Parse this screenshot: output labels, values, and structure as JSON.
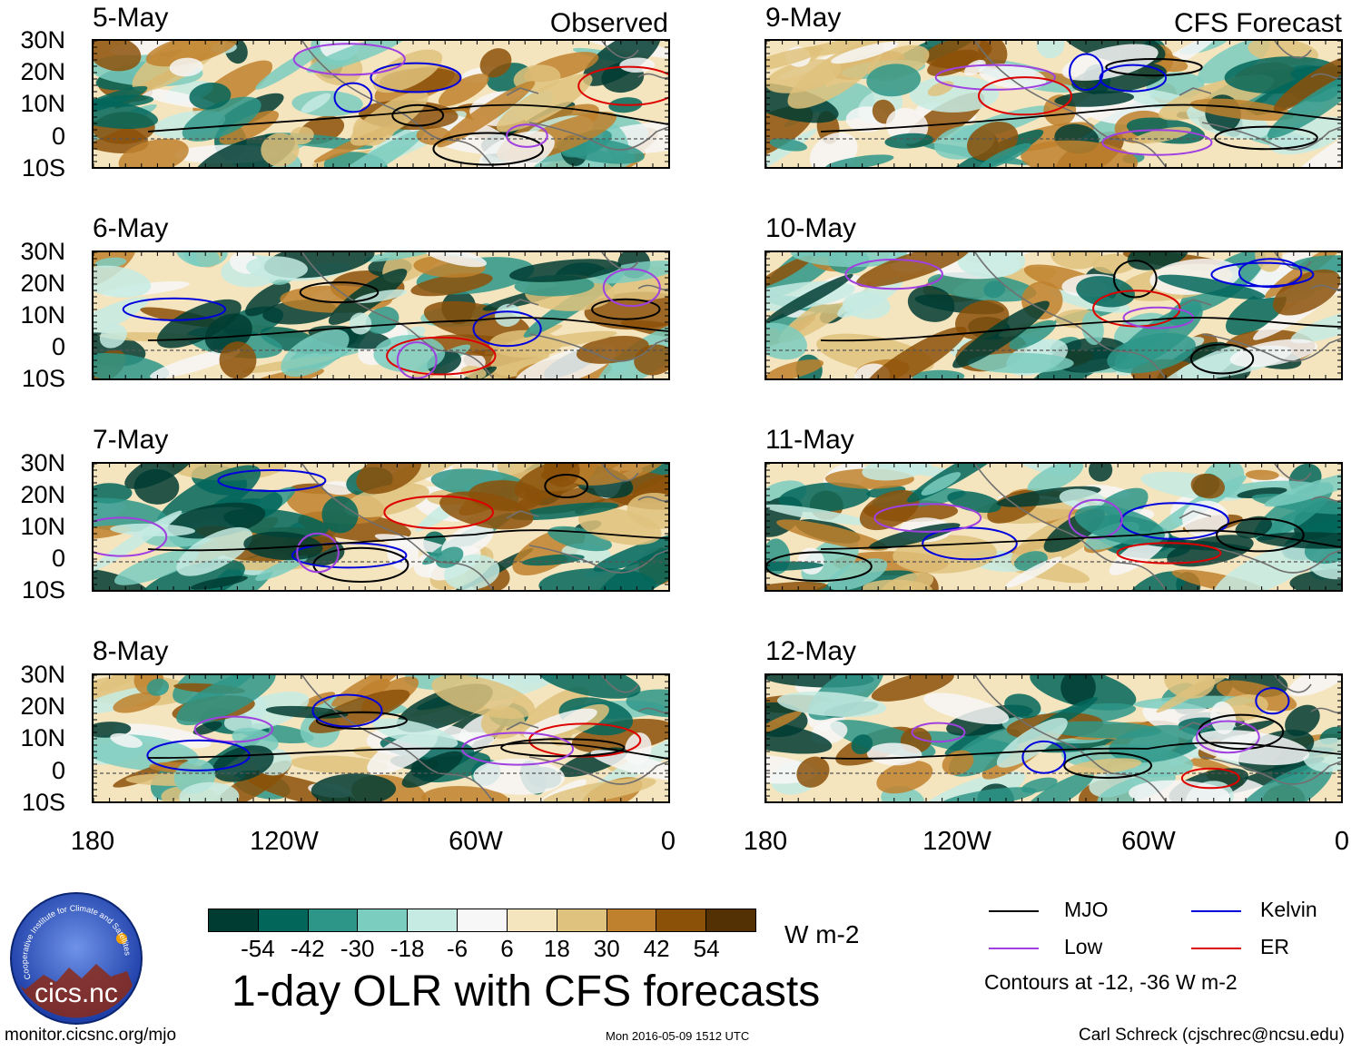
{
  "columns": {
    "observed": "Observed",
    "forecast": "CFS Forecast"
  },
  "observed_dates": [
    "5-May",
    "6-May",
    "7-May",
    "8-May"
  ],
  "forecast_dates": [
    "9-May",
    "10-May",
    "11-May",
    "12-May"
  ],
  "lat_labels": [
    "30N",
    "20N",
    "10N",
    "0",
    "10S"
  ],
  "lon_labels": [
    "180",
    "120W",
    "60W",
    "0"
  ],
  "colorbar": {
    "ticks": [
      "-54",
      "-42",
      "-30",
      "-18",
      "-6",
      "6",
      "18",
      "30",
      "42",
      "54"
    ],
    "colors": [
      "#013c32",
      "#02665a",
      "#2e9688",
      "#7bcdbf",
      "#c6ebe3",
      "#f7f7f7",
      "#f5e5bf",
      "#dfc27d",
      "#bf812d",
      "#8c5109",
      "#543005"
    ],
    "unit": "W m-2"
  },
  "title": "1-day OLR with CFS forecasts",
  "legend": {
    "items": [
      {
        "label": "MJO",
        "color": "#000000"
      },
      {
        "label": "Kelvin",
        "color": "#0000dd"
      },
      {
        "label": "Low",
        "color": "#a040e0"
      },
      {
        "label": "ER",
        "color": "#dd0000"
      }
    ],
    "note": "Contours at -12, -36 W m-2"
  },
  "logo": {
    "text": "cics.nc",
    "ring_text": "Cooperative Institute for Climate and Satellites"
  },
  "footer": {
    "left": "monitor.cicsnc.org/mjo",
    "center": "Mon 2016-05-09 1512 UTC",
    "right": "Carl Schreck (cjschrec@ncsu.edu)"
  }
}
